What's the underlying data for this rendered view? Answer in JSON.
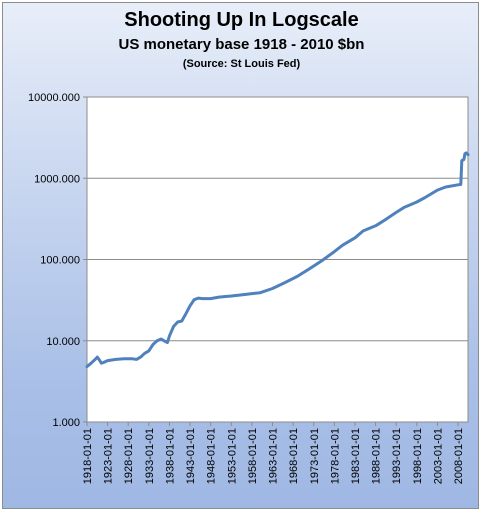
{
  "chart_data": {
    "type": "line",
    "title": "Shooting Up In Logscale",
    "subtitle": "US monetary base 1918 - 2010 $bn",
    "source": "(Source: St Louis Fed)",
    "xlabel": "",
    "ylabel": "",
    "y_scale": "log",
    "ylim": [
      1,
      10000
    ],
    "xlim": [
      "1918-01-01",
      "2010-06-01"
    ],
    "y_ticks": [
      "1.000",
      "10.000",
      "100.000",
      "1000.000",
      "10000.000"
    ],
    "x_ticks": [
      "1918-01-01",
      "1923-01-01",
      "1928-01-01",
      "1933-01-01",
      "1938-01-01",
      "1943-01-01",
      "1948-01-01",
      "1953-01-01",
      "1958-01-01",
      "1963-01-01",
      "1968-01-01",
      "1973-01-01",
      "1978-01-01",
      "1983-01-01",
      "1988-01-01",
      "1993-01-01",
      "1998-01-01",
      "2003-01-01",
      "2008-01-01"
    ],
    "grid": "horizontal",
    "line_color": "#4f81bd",
    "series": [
      {
        "x": [
          "1918-01-01",
          "1919-01-01",
          "1920-01-01",
          "1920-07-01",
          "1921-01-01",
          "1921-07-01",
          "1922-01-01",
          "1923-01-01",
          "1925-01-01",
          "1927-01-01",
          "1929-01-01",
          "1930-01-01",
          "1931-01-01",
          "1932-01-01",
          "1933-01-01",
          "1934-01-01",
          "1935-01-01",
          "1936-01-01",
          "1937-01-01",
          "1937-07-01",
          "1938-01-01",
          "1939-01-01",
          "1940-01-01",
          "1941-01-01",
          "1942-01-01",
          "1943-01-01",
          "1944-01-01",
          "1945-01-01",
          "1946-01-01",
          "1947-01-01",
          "1948-01-01",
          "1950-01-01",
          "1953-01-01",
          "1956-01-01",
          "1958-01-01",
          "1960-01-01",
          "1963-01-01",
          "1966-01-01",
          "1969-01-01",
          "1972-01-01",
          "1975-01-01",
          "1978-01-01",
          "1980-01-01",
          "1983-01-01",
          "1985-01-01",
          "1988-01-01",
          "1990-01-01",
          "1993-01-01",
          "1995-01-01",
          "1998-01-01",
          "2000-01-01",
          "2003-01-01",
          "2005-01-01",
          "2008-01-01",
          "2008-09-01",
          "2008-12-01",
          "2009-06-01",
          "2009-09-01",
          "2010-01-01",
          "2010-06-01"
        ],
        "values": [
          4.8,
          5.3,
          5.9,
          6.3,
          5.8,
          5.3,
          5.4,
          5.7,
          5.9,
          6.0,
          6.0,
          5.9,
          6.3,
          7.0,
          7.5,
          9.0,
          10.0,
          10.5,
          9.8,
          9.5,
          11.5,
          15.0,
          17.0,
          17.5,
          21.5,
          27.0,
          32.0,
          33.5,
          33.0,
          33.0,
          33.0,
          34.5,
          35.5,
          37.0,
          38.0,
          39.0,
          44.0,
          52.0,
          62.0,
          77.0,
          97.0,
          125.0,
          150.0,
          185.0,
          225.0,
          260.0,
          300.0,
          380.0,
          440.0,
          510.0,
          580.0,
          715.0,
          780.0,
          830.0,
          840.0,
          1650.0,
          1700.0,
          2000.0,
          2050.0,
          1950.0
        ]
      }
    ]
  }
}
